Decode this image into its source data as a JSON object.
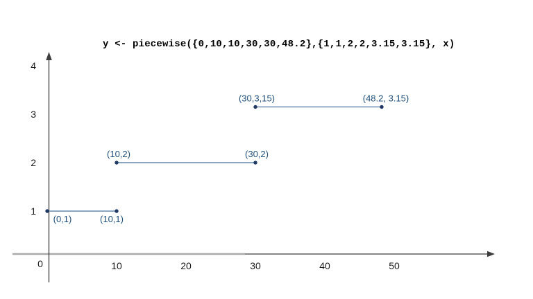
{
  "chart_data": {
    "type": "line",
    "title": "y <- piecewise({0,10,10,30,30,48.2},{1,1,2,2,3.15,3.15}, x)",
    "xlabel": "",
    "ylabel": "",
    "xlim": [
      0,
      58
    ],
    "ylim": [
      0,
      4.3
    ],
    "grid": false,
    "legend": false,
    "x_ticks": [
      "10",
      "20",
      "30",
      "40",
      "50"
    ],
    "x_tick_values": [
      10,
      20,
      30,
      40,
      50
    ],
    "y_ticks": [
      "1",
      "2",
      "3",
      "4"
    ],
    "y_tick_values": [
      1,
      2,
      3,
      4
    ],
    "origin_label": "0",
    "series": [
      {
        "name": "segment-1",
        "x": [
          0,
          10
        ],
        "y": [
          1,
          1
        ],
        "point_labels": [
          "(0,1)",
          "(10,1)"
        ],
        "label_side": "below",
        "label_dx": [
          22,
          -7
        ]
      },
      {
        "name": "segment-2",
        "x": [
          10,
          30
        ],
        "y": [
          2,
          2
        ],
        "point_labels": [
          "(10,2)",
          "(30,2)"
        ],
        "label_side": "above",
        "label_dx": [
          3,
          2
        ]
      },
      {
        "name": "segment-3",
        "x": [
          30,
          48.2
        ],
        "y": [
          3.15,
          3.15
        ],
        "point_labels": [
          "(30,3,15)",
          "(48.2, 3.15)"
        ],
        "label_side": "above",
        "label_dx": [
          2,
          6
        ]
      }
    ],
    "colors": {
      "background": "#ffffff",
      "line": "#41719c",
      "point": "#1f3864",
      "point_label": "#1f4e79",
      "axis_dark": "#3d3d3d",
      "axis_gray": "#a9a9a9",
      "tick_label": "#1a1a1a",
      "title": "#000000"
    }
  }
}
